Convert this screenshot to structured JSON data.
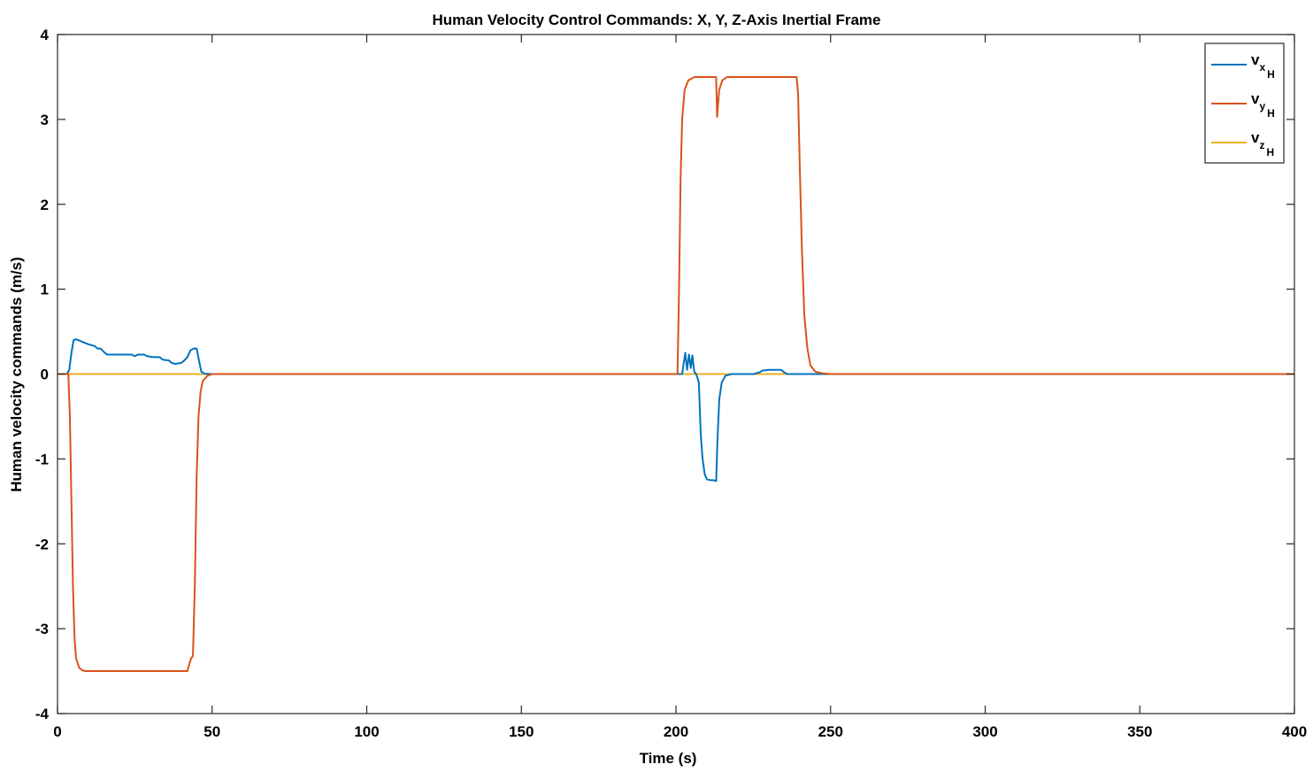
{
  "chart_data": {
    "type": "line",
    "title": "Human Velocity Control Commands: X, Y, Z-Axis Inertial Frame",
    "xlabel": "Time (s)",
    "ylabel": "Human velocity commands (m/s)",
    "xlim": [
      0,
      400
    ],
    "ylim": [
      -4,
      4
    ],
    "xticks": [
      0,
      50,
      100,
      150,
      200,
      250,
      300,
      350,
      400
    ],
    "yticks": [
      -4,
      -3,
      -2,
      -1,
      0,
      1,
      2,
      3,
      4
    ],
    "grid": false,
    "legend_position": "top-right",
    "series": [
      {
        "name": "v_{x_H}",
        "legend": {
          "main": "v",
          "sub": "x",
          "subsub": "H"
        },
        "color": "#0072BD",
        "points": [
          [
            0,
            0
          ],
          [
            3,
            0
          ],
          [
            3.8,
            0.05
          ],
          [
            4.5,
            0.25
          ],
          [
            5.2,
            0.4
          ],
          [
            6,
            0.41
          ],
          [
            8,
            0.38
          ],
          [
            10,
            0.35
          ],
          [
            12,
            0.33
          ],
          [
            13,
            0.3
          ],
          [
            14,
            0.3
          ],
          [
            15,
            0.26
          ],
          [
            16,
            0.23
          ],
          [
            18,
            0.23
          ],
          [
            20,
            0.23
          ],
          [
            22,
            0.23
          ],
          [
            24,
            0.23
          ],
          [
            25,
            0.21
          ],
          [
            26,
            0.23
          ],
          [
            28,
            0.23
          ],
          [
            29,
            0.21
          ],
          [
            31,
            0.2
          ],
          [
            33,
            0.2
          ],
          [
            34,
            0.17
          ],
          [
            36,
            0.16
          ],
          [
            37,
            0.13
          ],
          [
            38,
            0.12
          ],
          [
            40,
            0.13
          ],
          [
            41,
            0.16
          ],
          [
            42,
            0.2
          ],
          [
            43,
            0.28
          ],
          [
            44,
            0.3
          ],
          [
            45,
            0.3
          ],
          [
            45.8,
            0.15
          ],
          [
            46.5,
            0.03
          ],
          [
            47.5,
            0.005
          ],
          [
            50,
            0
          ],
          [
            100,
            0
          ],
          [
            150,
            0
          ],
          [
            200,
            0
          ],
          [
            202,
            0
          ],
          [
            203,
            0.25
          ],
          [
            203.6,
            0.05
          ],
          [
            204.2,
            0.23
          ],
          [
            204.8,
            0.07
          ],
          [
            205.3,
            0.22
          ],
          [
            205.9,
            0.03
          ],
          [
            206.5,
            0.0
          ],
          [
            207,
            -0.05
          ],
          [
            207.4,
            -0.1
          ],
          [
            208,
            -0.7
          ],
          [
            208.6,
            -1.0
          ],
          [
            209.3,
            -1.18
          ],
          [
            210,
            -1.24
          ],
          [
            211,
            -1.25
          ],
          [
            212,
            -1.25
          ],
          [
            213,
            -1.26
          ],
          [
            213.4,
            -0.8
          ],
          [
            214,
            -0.3
          ],
          [
            214.8,
            -0.1
          ],
          [
            216,
            -0.02
          ],
          [
            218,
            0
          ],
          [
            225,
            0
          ],
          [
            227,
            0.02
          ],
          [
            228,
            0.04
          ],
          [
            230,
            0.05
          ],
          [
            233,
            0.05
          ],
          [
            234,
            0.05
          ],
          [
            235,
            0.02
          ],
          [
            236,
            0
          ],
          [
            240,
            0
          ],
          [
            300,
            0
          ],
          [
            400,
            0
          ]
        ]
      },
      {
        "name": "v_{y_H}",
        "legend": {
          "main": "v",
          "sub": "y",
          "subsub": "H"
        },
        "color": "#D95319",
        "points": [
          [
            0,
            0
          ],
          [
            3.5,
            0
          ],
          [
            4.0,
            -0.5
          ],
          [
            4.5,
            -1.5
          ],
          [
            5.0,
            -2.5
          ],
          [
            5.5,
            -3.1
          ],
          [
            6,
            -3.35
          ],
          [
            7,
            -3.46
          ],
          [
            8,
            -3.49
          ],
          [
            9,
            -3.5
          ],
          [
            20,
            -3.5
          ],
          [
            30,
            -3.5
          ],
          [
            40,
            -3.5
          ],
          [
            42,
            -3.5
          ],
          [
            42.6,
            -3.42
          ],
          [
            43.2,
            -3.35
          ],
          [
            43.8,
            -3.32
          ],
          [
            44.4,
            -2.5
          ],
          [
            45,
            -1.2
          ],
          [
            45.6,
            -0.5
          ],
          [
            46.3,
            -0.2
          ],
          [
            47,
            -0.08
          ],
          [
            48.5,
            -0.02
          ],
          [
            50,
            0
          ],
          [
            100,
            0
          ],
          [
            150,
            0
          ],
          [
            200,
            0
          ],
          [
            200.5,
            0
          ],
          [
            201,
            1.0
          ],
          [
            201.5,
            2.3
          ],
          [
            202,
            3.0
          ],
          [
            202.8,
            3.35
          ],
          [
            204,
            3.46
          ],
          [
            206,
            3.5
          ],
          [
            212,
            3.5
          ],
          [
            213,
            3.5
          ],
          [
            213.3,
            3.03
          ],
          [
            214,
            3.35
          ],
          [
            215,
            3.46
          ],
          [
            216.5,
            3.5
          ],
          [
            225,
            3.5
          ],
          [
            235,
            3.5
          ],
          [
            239,
            3.5
          ],
          [
            239.5,
            3.3
          ],
          [
            240,
            2.5
          ],
          [
            240.7,
            1.5
          ],
          [
            241.5,
            0.7
          ],
          [
            242.5,
            0.3
          ],
          [
            243.5,
            0.1
          ],
          [
            245,
            0.03
          ],
          [
            247,
            0.01
          ],
          [
            250,
            0
          ],
          [
            300,
            0
          ],
          [
            400,
            0
          ]
        ]
      },
      {
        "name": "v_{z_H}",
        "legend": {
          "main": "v",
          "sub": "z",
          "subsub": "H"
        },
        "color": "#EDB120",
        "points": [
          [
            0,
            0
          ],
          [
            400,
            0
          ]
        ]
      }
    ]
  }
}
